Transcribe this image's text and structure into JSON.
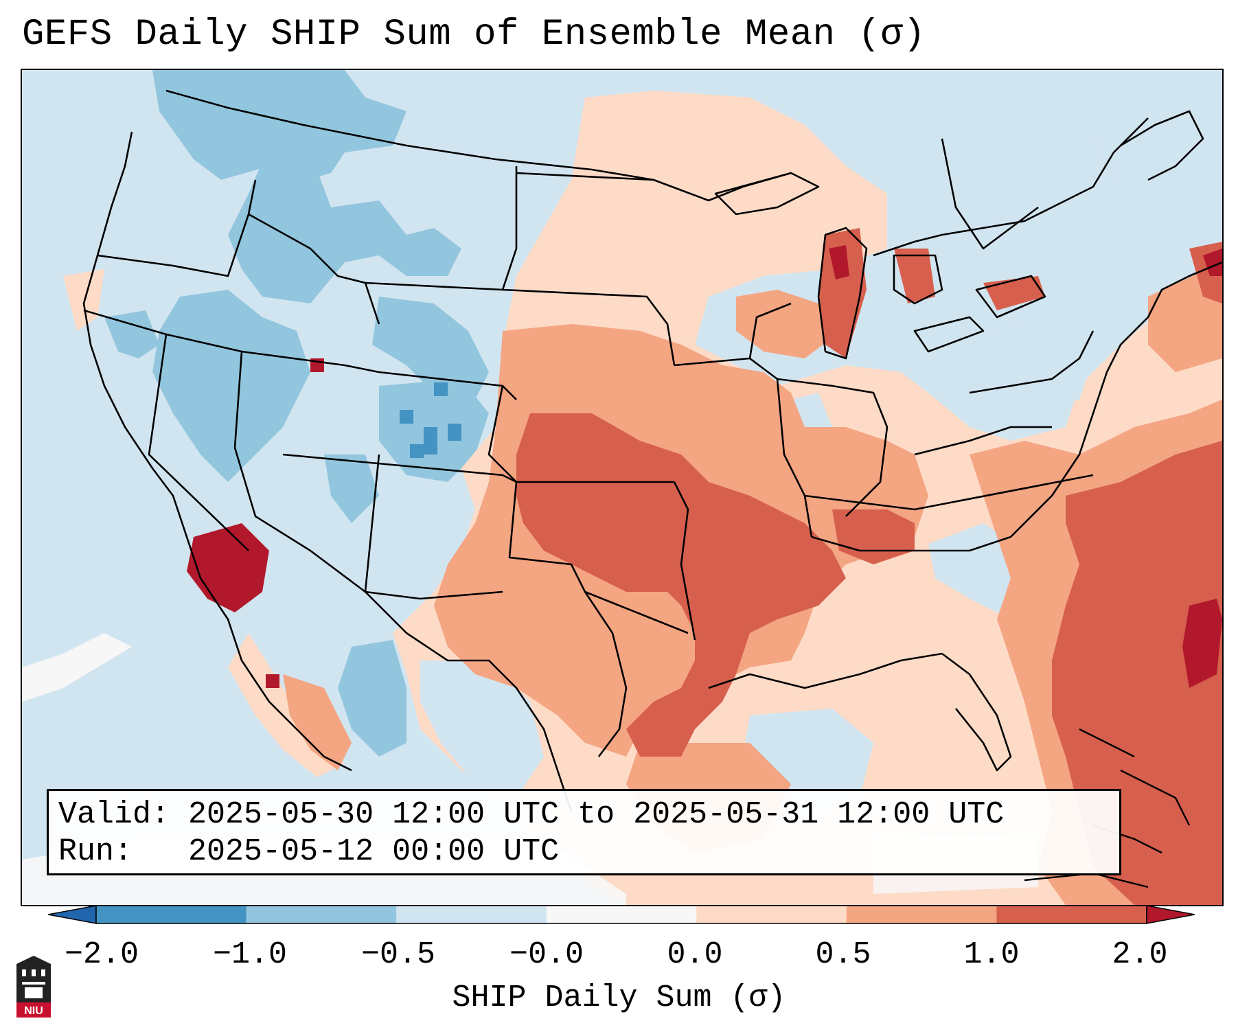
{
  "title": "GEFS Daily SHIP Sum of Ensemble Mean (σ)",
  "info": {
    "valid_label": "Valid:",
    "valid_value": "2025-05-30 12:00 UTC to 2025-05-31 12:00 UTC",
    "run_label": "Run:",
    "run_value": "2025-05-12 00:00 UTC"
  },
  "colorbar": {
    "label": "SHIP Daily Sum (σ)",
    "ticks": [
      "−2.0",
      "−1.0",
      "−0.5",
      "−0.0",
      "0.0",
      "0.5",
      "1.0",
      "2.0"
    ],
    "bins": [
      "#2166ac",
      "#4393c3",
      "#92c5de",
      "#d1e5f0",
      "#f7f7f7",
      "#fddbc7",
      "#f4a582",
      "#d6604d",
      "#b2182b"
    ]
  },
  "logo": {
    "text": "NIU",
    "color": "#c8102e"
  },
  "map": {
    "region": "Continental United States, southern Canada, northern Mexico",
    "background_bin": "#d1e5f0"
  }
}
